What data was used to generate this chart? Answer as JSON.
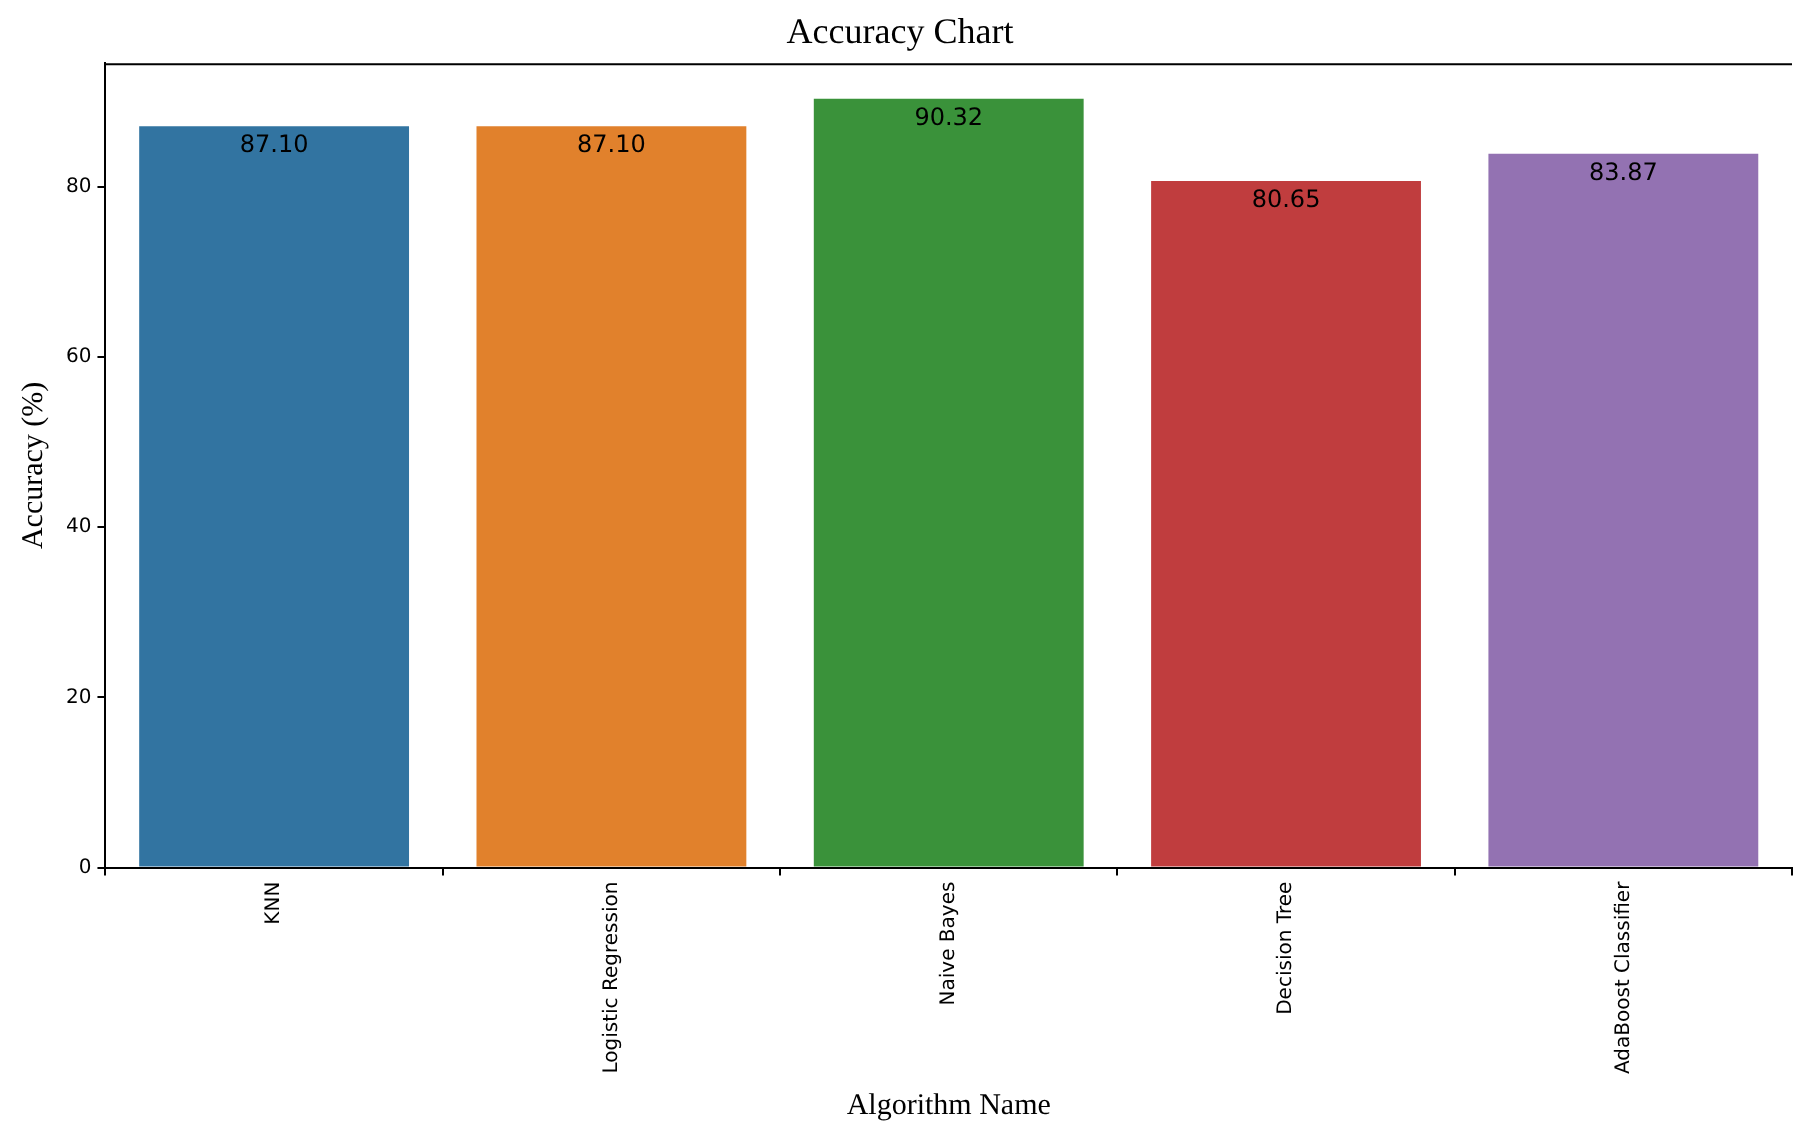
{
  "chart_data": {
    "type": "bar",
    "title": "Accuracy Chart",
    "xlabel": "Algorithm Name",
    "ylabel": "Accuracy (%)",
    "categories": [
      "KNN",
      "Logistic Regression",
      "Naive Bayes",
      "Decision Tree",
      "AdaBoost Classifier"
    ],
    "values": [
      87.1,
      87.1,
      90.32,
      80.65,
      83.87
    ],
    "colors": [
      "#3274a1",
      "#e1812c",
      "#3a923a",
      "#c03d3e",
      "#9372b2"
    ],
    "value_labels": [
      "87.10",
      "87.10",
      "90.32",
      "80.65",
      "83.87"
    ],
    "ylim": [
      0,
      94.5
    ],
    "yticks": [
      0,
      20,
      40,
      60,
      80
    ],
    "grid": false
  }
}
